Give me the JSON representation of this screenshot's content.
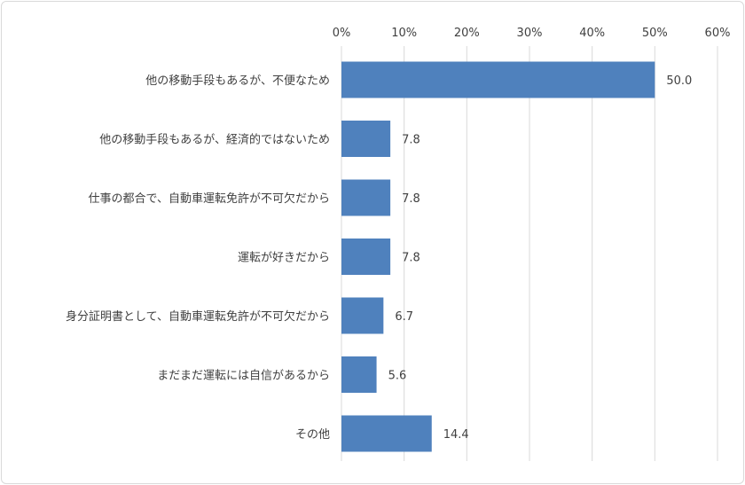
{
  "chart_data": {
    "type": "bar",
    "orientation": "horizontal",
    "categories": [
      "他の移動手段もあるが、不便なため",
      "他の移動手段もあるが、経済的ではないため",
      "仕事の都合で、自動車運転免許が不可欠だから",
      "運転が好きだから",
      "身分証明書として、自動車運転免許が不可欠だから",
      "まだまだ運転には自信があるから",
      "その他"
    ],
    "values": [
      50.0,
      7.8,
      7.8,
      7.8,
      6.7,
      5.6,
      14.4
    ],
    "value_labels": [
      "50.0",
      "7.8",
      "7.8",
      "7.8",
      "6.7",
      "5.6",
      "14.4"
    ],
    "x_ticks": [
      "0%",
      "10%",
      "20%",
      "30%",
      "40%",
      "50%",
      "60%"
    ],
    "xlim": [
      0,
      60
    ],
    "xaxis_position": "top",
    "grid": true,
    "legend": "none",
    "colors": {
      "bar": "#4f81bd",
      "grid": "#d9d9d9",
      "text": "#404040"
    }
  }
}
